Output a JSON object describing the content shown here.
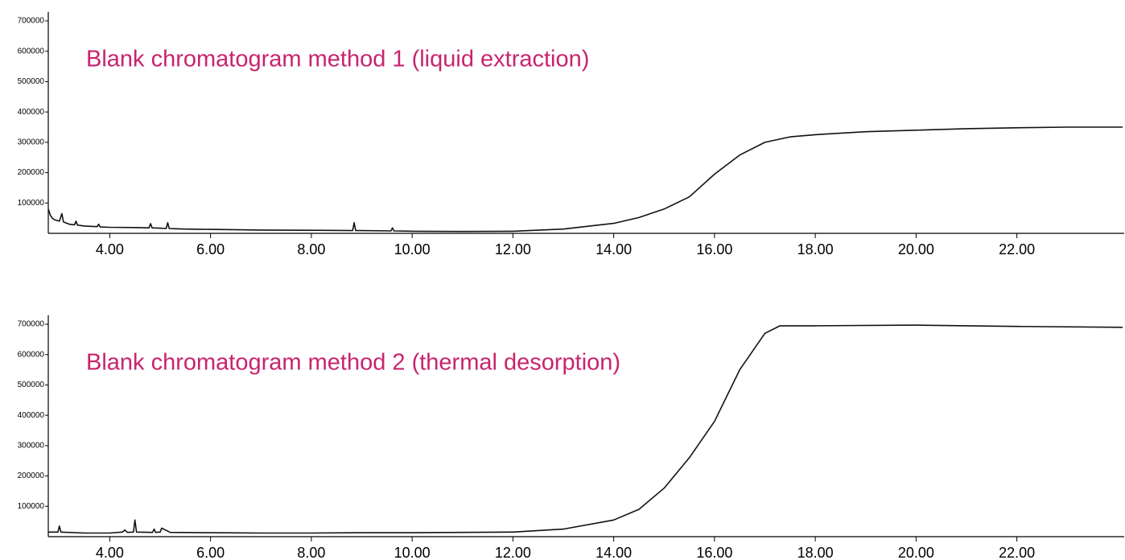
{
  "chart_data": [
    {
      "type": "line",
      "title": "Blank chromatogram method 1 (liquid extraction)",
      "title_color": "#c8246e",
      "color": "#111111",
      "x": [
        2.78,
        2.82,
        2.86,
        2.9,
        3.0,
        3.05,
        3.08,
        3.2,
        3.3,
        3.33,
        3.36,
        3.5,
        3.75,
        3.78,
        3.81,
        4.0,
        4.5,
        4.78,
        4.81,
        4.84,
        5.0,
        5.12,
        5.15,
        5.18,
        5.3,
        5.5,
        6.0,
        7.0,
        8.0,
        8.82,
        8.85,
        8.88,
        9.0,
        9.58,
        9.61,
        9.64,
        10.0,
        11.0,
        12.0,
        13.0,
        14.0,
        14.5,
        15.0,
        15.5,
        16.0,
        16.5,
        17.0,
        17.5,
        18.0,
        19.0,
        20.0,
        21.0,
        22.0,
        23.0,
        24.1
      ],
      "values": [
        80000,
        60000,
        50000,
        45000,
        40000,
        65000,
        38000,
        30000,
        28000,
        40000,
        27000,
        24000,
        22000,
        30000,
        21000,
        20000,
        19000,
        18000,
        32000,
        18000,
        17000,
        16000,
        35000,
        16000,
        15000,
        14000,
        13000,
        11000,
        10000,
        9000,
        35000,
        9000,
        9000,
        8000,
        18000,
        8000,
        7000,
        6000,
        7000,
        14000,
        33000,
        52000,
        80000,
        120000,
        195000,
        258000,
        300000,
        318000,
        325000,
        335000,
        340000,
        345000,
        348000,
        350000,
        350000
      ],
      "xlim": [
        2.78,
        24.13
      ],
      "ylim": [
        0,
        730000
      ],
      "xticks": [
        {
          "value": 4,
          "label": "4.00"
        },
        {
          "value": 6,
          "label": "6.00"
        },
        {
          "value": 8,
          "label": "8.00"
        },
        {
          "value": 10,
          "label": "10.00"
        },
        {
          "value": 12,
          "label": "12.00"
        },
        {
          "value": 14,
          "label": "14.00"
        },
        {
          "value": 16,
          "label": "16.00"
        },
        {
          "value": 18,
          "label": "18.00"
        },
        {
          "value": 20,
          "label": "20.00"
        },
        {
          "value": 22,
          "label": "22.00"
        }
      ],
      "yticks": [
        100000,
        200000,
        300000,
        400000,
        500000,
        600000,
        700000
      ]
    },
    {
      "type": "line",
      "title": "Blank chromatogram method 2 (thermal desorption)",
      "title_color": "#c8246e",
      "color": "#111111",
      "x": [
        2.78,
        2.97,
        3.0,
        3.03,
        3.5,
        4.0,
        4.25,
        4.3,
        4.35,
        4.47,
        4.5,
        4.53,
        4.85,
        4.88,
        4.91,
        5.0,
        5.03,
        5.2,
        6.0,
        7.0,
        8.0,
        9.0,
        10.0,
        11.0,
        12.0,
        13.0,
        14.0,
        14.5,
        15.0,
        15.5,
        16.0,
        16.5,
        17.0,
        17.3,
        18.0,
        20.0,
        22.0,
        24.1
      ],
      "values": [
        15000,
        15000,
        35000,
        15000,
        12000,
        12000,
        15000,
        22000,
        14000,
        15000,
        55000,
        15000,
        14000,
        25000,
        14000,
        15000,
        28000,
        14000,
        13000,
        12000,
        12000,
        13000,
        13000,
        14000,
        15000,
        25000,
        55000,
        90000,
        160000,
        260000,
        380000,
        550000,
        670000,
        695000,
        695000,
        697000,
        693000,
        690000
      ],
      "xlim": [
        2.78,
        24.13
      ],
      "ylim": [
        0,
        730000
      ],
      "xticks": [
        {
          "value": 4,
          "label": "4.00"
        },
        {
          "value": 6,
          "label": "6.00"
        },
        {
          "value": 8,
          "label": "8.00"
        },
        {
          "value": 10,
          "label": "10.00"
        },
        {
          "value": 12,
          "label": "12.00"
        },
        {
          "value": 14,
          "label": "14.00"
        },
        {
          "value": 16,
          "label": "16.00"
        },
        {
          "value": 18,
          "label": "18.00"
        },
        {
          "value": 20,
          "label": "20.00"
        },
        {
          "value": 22,
          "label": "22.00"
        }
      ],
      "yticks": [
        100000,
        200000,
        300000,
        400000,
        500000,
        600000,
        700000
      ]
    }
  ]
}
